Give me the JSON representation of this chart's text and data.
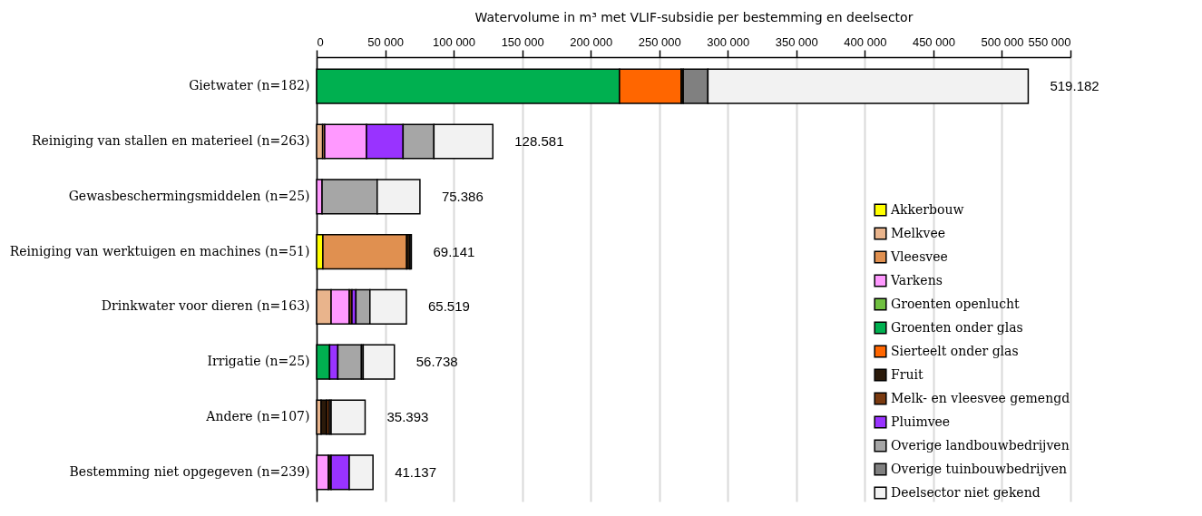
{
  "chart_data": {
    "type": "bar",
    "orientation": "horizontal",
    "stacked": true,
    "xlabel": "Watervolume in m³ met VLIF-subsidie per bestemming en deelsector",
    "categories": [
      "Gietwater (n=182)",
      "Reiniging van stallen en materieel (n=263)",
      "Gewasbeschermingsmiddelen (n=25)",
      "Reiniging van werktuigen en machines (n=51)",
      "Drinkwater voor dieren (n=163)",
      "Irrigatie (n=25)",
      "Andere (n=107)",
      "Bestemming niet opgegeven (n=239)"
    ],
    "series": [
      {
        "name": "Akkerbouw",
        "color": "#ffff00",
        "values": [
          null,
          null,
          null,
          4600,
          null,
          null,
          null,
          null
        ]
      },
      {
        "name": "Melkvee",
        "color": "#e9b48c",
        "values": [
          null,
          4400,
          null,
          null,
          10600,
          null,
          3300,
          null
        ]
      },
      {
        "name": "Vleesvee",
        "color": "#e09050",
        "values": [
          null,
          1500,
          null,
          61100,
          null,
          null,
          null,
          null
        ]
      },
      {
        "name": "Varkens",
        "color": "#ff99ff",
        "values": [
          null,
          30500,
          4000,
          null,
          13200,
          null,
          null,
          8600
        ]
      },
      {
        "name": "Groenten openlucht",
        "color": "#70c040",
        "values": [
          null,
          null,
          null,
          null,
          null,
          null,
          null,
          null
        ]
      },
      {
        "name": "Groenten onder glas",
        "color": "#00b050",
        "values": [
          221000,
          null,
          null,
          null,
          null,
          9500,
          null,
          null
        ]
      },
      {
        "name": "Sierteelt onder glas",
        "color": "#ff6600",
        "values": [
          45000,
          null,
          null,
          null,
          null,
          null,
          null,
          null
        ]
      },
      {
        "name": "Fruit",
        "color": "#2b1a0a",
        "values": [
          1500,
          null,
          null,
          2400,
          null,
          null,
          4000,
          2000
        ]
      },
      {
        "name": "Melk- en vleesvee gemengd",
        "color": "#7a3a10",
        "values": [
          null,
          null,
          null,
          null,
          2000,
          null,
          2000,
          null
        ]
      },
      {
        "name": "Pluimvee",
        "color": "#9933ff",
        "values": [
          null,
          26700,
          null,
          null,
          2900,
          6000,
          null,
          13200
        ]
      },
      {
        "name": "Overige landbouwbedrijven",
        "color": "#a6a6a6",
        "values": [
          null,
          22500,
          40200,
          null,
          10200,
          17200,
          1300,
          null
        ]
      },
      {
        "name": "Overige tuinbouwbedrijven",
        "color": "#808080",
        "values": [
          18000,
          null,
          null,
          null,
          null,
          1300,
          null,
          null
        ]
      },
      {
        "name": "Deelsector niet gekend",
        "color": "#f2f2f2",
        "values": [
          233682,
          42981,
          31186,
          1041,
          26619,
          22738,
          24793,
          17337
        ]
      }
    ],
    "totals": [
      "519.182",
      "128.581",
      "75.386",
      "69.141",
      "65.519",
      "56.738",
      "35.393",
      "41.137"
    ],
    "xlim": [
      0,
      550000
    ],
    "xticks": [
      0,
      {
        "value": 50000,
        "label": "50 000"
      },
      {
        "value": 100000,
        "label": "100 000"
      },
      {
        "value": 150000,
        "label": "150 000"
      },
      {
        "value": 200000,
        "label": "200 000"
      },
      {
        "value": 250000,
        "label": "250 000"
      },
      {
        "value": 300000,
        "label": "300 000"
      },
      {
        "value": 350000,
        "label": "350 000"
      },
      {
        "value": 400000,
        "label": "400 000"
      },
      {
        "value": 450000,
        "label": "450 000"
      },
      {
        "value": 500000,
        "label": "500 000"
      },
      {
        "value": 550000,
        "label": "550 000"
      }
    ],
    "grid": "x",
    "legend": "bottom right"
  }
}
